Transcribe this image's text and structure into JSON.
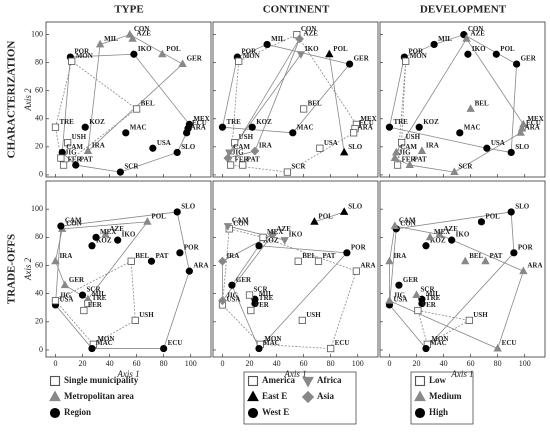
{
  "panels": [
    {
      "title": "TYPE",
      "legend": [
        {
          "label": "Single municipality",
          "marker": "square",
          "fill": "#ffffff"
        },
        {
          "label": "Metropolitan area",
          "marker": "triangle",
          "fill": "#888888"
        },
        {
          "label": "Region",
          "marker": "circle",
          "fill": "#000000"
        }
      ],
      "groups": [
        1,
        1,
        1,
        2,
        0,
        2,
        1,
        1,
        0,
        0,
        2,
        0,
        2,
        1,
        2,
        2,
        2,
        2,
        2,
        2,
        0,
        0,
        2,
        2
      ]
    },
    {
      "title": "CONTINENT",
      "legend": [
        {
          "label": "America",
          "marker": "square",
          "fill": "#ffffff"
        },
        {
          "label": "East E",
          "marker": "triangle",
          "fill": "#000000"
        },
        {
          "label": "West E",
          "marker": "circle",
          "fill": "#000000"
        },
        {
          "label": "Africa",
          "marker": "down-triangle",
          "fill": "#888888"
        },
        {
          "label": "Asia",
          "marker": "diamond",
          "fill": "#888888"
        }
      ],
      "groups": [
        2,
        0,
        4,
        2,
        0,
        3,
        1,
        2,
        0,
        2,
        2,
        0,
        2,
        4,
        0,
        0,
        0,
        0,
        1,
        3,
        4,
        0,
        0,
        0
      ]
    },
    {
      "title": "DEVELOPMENT",
      "legend": [
        {
          "label": "Low",
          "marker": "square",
          "fill": "#ffffff"
        },
        {
          "label": "Medium",
          "marker": "triangle",
          "fill": "#888888"
        },
        {
          "label": "High",
          "marker": "circle",
          "fill": "#000000"
        }
      ],
      "groups": [
        2,
        2,
        1,
        2,
        0,
        2,
        2,
        2,
        1,
        2,
        2,
        0,
        2,
        1,
        2,
        1,
        1,
        1,
        2,
        1,
        1,
        0,
        1,
        1
      ]
    }
  ],
  "chart_data": [
    {
      "type": "scatter",
      "title": "CHARACTERIZATION",
      "ylabel": "Axis 2",
      "xlim": [
        -7,
        115
      ],
      "ylim": [
        -1.5,
        109
      ],
      "xticks": [
        0,
        20,
        40,
        60,
        80,
        100
      ],
      "yticks": [
        0,
        20,
        40,
        60,
        80,
        100
      ],
      "labels": [
        "MIL",
        "CON",
        "AZE",
        "POR",
        "MON",
        "IKO",
        "POL",
        "GER",
        "BEL",
        "TRE",
        "KOZ",
        "USH",
        "MAC",
        "IRA",
        "USA",
        "MEX",
        "ECU",
        "ARA",
        "SLO",
        "CAM",
        "JIG",
        "FER",
        "PAT",
        "SCR"
      ],
      "x": [
        33,
        55,
        57,
        11,
        12,
        58,
        79,
        94,
        60,
        0,
        22,
        9,
        52,
        24,
        72,
        99,
        98,
        97,
        90,
        5,
        4,
        6,
        15,
        48
      ],
      "y": [
        93,
        100,
        97,
        84,
        81,
        86,
        86,
        79,
        47,
        34,
        34,
        23,
        30,
        17,
        19,
        36,
        33,
        30,
        16,
        16,
        12,
        7,
        7,
        2
      ]
    },
    {
      "type": "scatter",
      "title": "TRADE-OFFS",
      "xlabel": "Axis 1",
      "ylabel": "Axis 2",
      "xlim": [
        -7,
        115
      ],
      "ylim": [
        -5,
        120
      ],
      "xticks": [
        0,
        20,
        40,
        60,
        80,
        100
      ],
      "yticks": [
        0,
        20,
        40,
        60,
        80,
        100
      ],
      "labels": [
        "MIL",
        "CON",
        "AZE",
        "POR",
        "MON",
        "IKO",
        "POL",
        "GER",
        "BEL",
        "TRE",
        "KOZ",
        "USH",
        "MAC",
        "IRA",
        "USA",
        "MEX",
        "ECU",
        "ARA",
        "SLO",
        "CAM",
        "JIG",
        "FER",
        "PAT",
        "SCR"
      ],
      "x": [
        24,
        5,
        37,
        92,
        28,
        46,
        68,
        7,
        56,
        24,
        27,
        59,
        27,
        0,
        0,
        30,
        80,
        99,
        90,
        4,
        0,
        21,
        71,
        20
      ],
      "y": [
        36,
        86,
        82,
        69,
        4,
        78,
        91,
        46,
        63,
        33,
        74,
        21,
        1,
        63,
        32,
        80,
        1,
        56,
        98,
        88,
        35,
        28,
        63,
        39
      ]
    }
  ]
}
